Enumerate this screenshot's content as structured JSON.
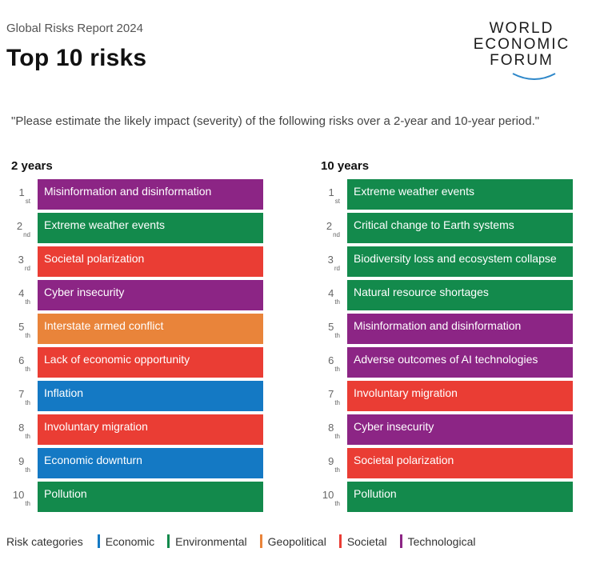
{
  "header": {
    "subtitle": "Global Risks Report 2024",
    "title": "Top 10 risks",
    "logo_lines": [
      "WORLD",
      "ECONOMIC",
      "FORUM"
    ]
  },
  "question": "\"Please estimate the likely impact (severity) of the following risks over a 2-year and 10-year period.\"",
  "colors": {
    "Economic": "#1479c4",
    "Environmental": "#138a4c",
    "Geopolitical": "#e9843a",
    "Societal": "#ea3d34",
    "Technological": "#8c2585"
  },
  "columns": [
    {
      "heading": "2 years",
      "items": [
        {
          "num": "1",
          "suffix": "st",
          "label": "Misinformation and disinformation",
          "category": "Technological"
        },
        {
          "num": "2",
          "suffix": "nd",
          "label": "Extreme weather events",
          "category": "Environmental"
        },
        {
          "num": "3",
          "suffix": "rd",
          "label": "Societal polarization",
          "category": "Societal"
        },
        {
          "num": "4",
          "suffix": "th",
          "label": "Cyber insecurity",
          "category": "Technological"
        },
        {
          "num": "5",
          "suffix": "th",
          "label": "Interstate armed conflict",
          "category": "Geopolitical"
        },
        {
          "num": "6",
          "suffix": "th",
          "label": "Lack of economic opportunity",
          "category": "Societal"
        },
        {
          "num": "7",
          "suffix": "th",
          "label": "Inflation",
          "category": "Economic"
        },
        {
          "num": "8",
          "suffix": "th",
          "label": "Involuntary migration",
          "category": "Societal"
        },
        {
          "num": "9",
          "suffix": "th",
          "label": "Economic downturn",
          "category": "Economic"
        },
        {
          "num": "10",
          "suffix": "th",
          "label": "Pollution",
          "category": "Environmental"
        }
      ]
    },
    {
      "heading": "10 years",
      "items": [
        {
          "num": "1",
          "suffix": "st",
          "label": "Extreme weather events",
          "category": "Environmental"
        },
        {
          "num": "2",
          "suffix": "nd",
          "label": "Critical change to Earth systems",
          "category": "Environmental"
        },
        {
          "num": "3",
          "suffix": "rd",
          "label": "Biodiversity loss and ecosystem collapse",
          "category": "Environmental"
        },
        {
          "num": "4",
          "suffix": "th",
          "label": "Natural resource shortages",
          "category": "Environmental"
        },
        {
          "num": "5",
          "suffix": "th",
          "label": "Misinformation and disinformation",
          "category": "Technological"
        },
        {
          "num": "6",
          "suffix": "th",
          "label": "Adverse outcomes of AI technologies",
          "category": "Technological"
        },
        {
          "num": "7",
          "suffix": "th",
          "label": "Involuntary migration",
          "category": "Societal"
        },
        {
          "num": "8",
          "suffix": "th",
          "label": "Cyber insecurity",
          "category": "Technological"
        },
        {
          "num": "9",
          "suffix": "th",
          "label": "Societal polarization",
          "category": "Societal"
        },
        {
          "num": "10",
          "suffix": "th",
          "label": "Pollution",
          "category": "Environmental"
        }
      ]
    }
  ],
  "legend": {
    "label": "Risk categories",
    "items": [
      "Economic",
      "Environmental",
      "Geopolitical",
      "Societal",
      "Technological"
    ]
  }
}
